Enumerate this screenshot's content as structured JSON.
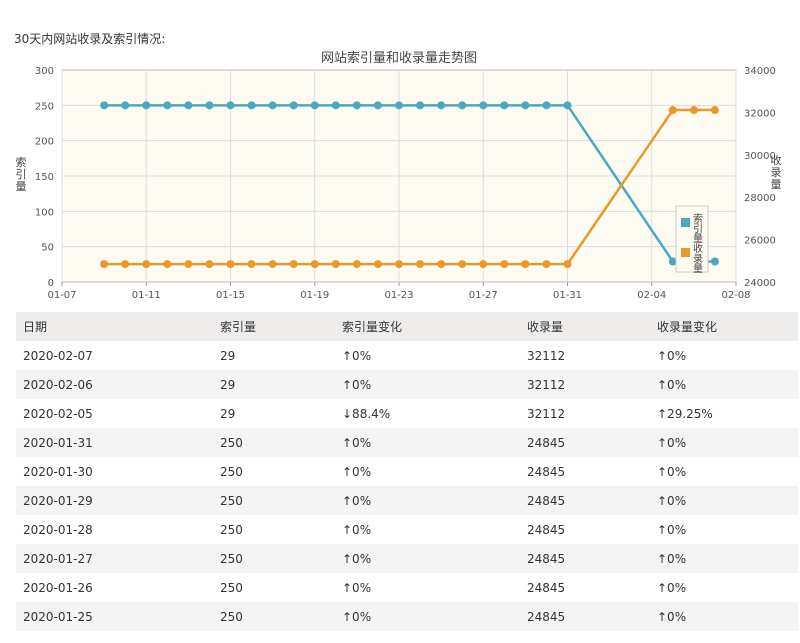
{
  "heading": "30天内网站收录及索引情况:",
  "chart_data": {
    "type": "line",
    "title": "网站索引量和收录量走势图",
    "ylabel_left": "索引量",
    "ylabel_right": "收录量",
    "x_ticks": [
      "01-07",
      "01-11",
      "01-15",
      "01-19",
      "01-23",
      "01-27",
      "01-31",
      "02-04",
      "02-08"
    ],
    "left_axis": {
      "ylim": [
        0,
        300
      ],
      "ticks": [
        0,
        50,
        100,
        150,
        200,
        250,
        300
      ]
    },
    "right_axis": {
      "ylim": [
        24000,
        34000
      ],
      "ticks": [
        24000,
        26000,
        28000,
        30000,
        32000,
        34000
      ]
    },
    "grid": true,
    "legend_position": "right",
    "x": [
      "01-09",
      "01-10",
      "01-11",
      "01-12",
      "01-13",
      "01-14",
      "01-15",
      "01-16",
      "01-17",
      "01-18",
      "01-19",
      "01-20",
      "01-21",
      "01-22",
      "01-23",
      "01-24",
      "01-25",
      "01-26",
      "01-27",
      "01-28",
      "01-29",
      "01-30",
      "01-31",
      "02-05",
      "02-06",
      "02-07"
    ],
    "series": [
      {
        "name": "索引量",
        "axis": "left",
        "color": "#4aa9bd",
        "values": [
          250,
          250,
          250,
          250,
          250,
          250,
          250,
          250,
          250,
          250,
          250,
          250,
          250,
          250,
          250,
          250,
          250,
          250,
          250,
          250,
          250,
          250,
          250,
          29,
          29,
          29
        ]
      },
      {
        "name": "收录量",
        "axis": "right",
        "color": "#e79a2b",
        "values": [
          24845,
          24845,
          24845,
          24845,
          24845,
          24845,
          24845,
          24845,
          24845,
          24845,
          24845,
          24845,
          24845,
          24845,
          24845,
          24845,
          24845,
          24845,
          24845,
          24845,
          24845,
          24845,
          24845,
          32112,
          32112,
          32112
        ]
      }
    ]
  },
  "table": {
    "headers": [
      "日期",
      "索引量",
      "索引量变化",
      "收录量",
      "收录量变化"
    ],
    "rows": [
      [
        "2020-02-07",
        "29",
        "↑0%",
        "32112",
        "↑0%"
      ],
      [
        "2020-02-06",
        "29",
        "↑0%",
        "32112",
        "↑0%"
      ],
      [
        "2020-02-05",
        "29",
        "↓88.4%",
        "32112",
        "↑29.25%"
      ],
      [
        "2020-01-31",
        "250",
        "↑0%",
        "24845",
        "↑0%"
      ],
      [
        "2020-01-30",
        "250",
        "↑0%",
        "24845",
        "↑0%"
      ],
      [
        "2020-01-29",
        "250",
        "↑0%",
        "24845",
        "↑0%"
      ],
      [
        "2020-01-28",
        "250",
        "↑0%",
        "24845",
        "↑0%"
      ],
      [
        "2020-01-27",
        "250",
        "↑0%",
        "24845",
        "↑0%"
      ],
      [
        "2020-01-26",
        "250",
        "↑0%",
        "24845",
        "↑0%"
      ],
      [
        "2020-01-25",
        "250",
        "↑0%",
        "24845",
        "↑0%"
      ]
    ]
  }
}
